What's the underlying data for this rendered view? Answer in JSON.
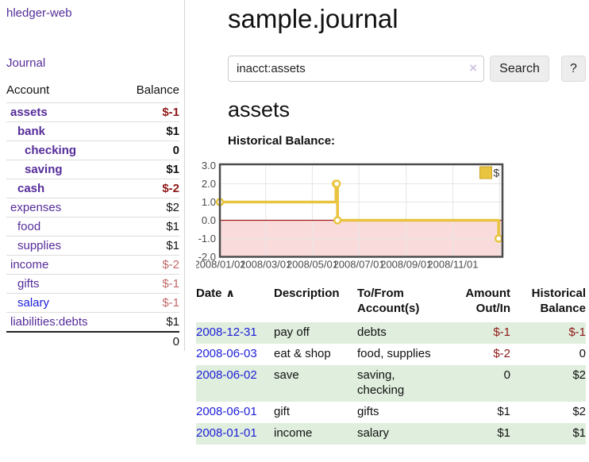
{
  "colors": {
    "link_purple": "#552c99",
    "link_blue": "#1d1dd8",
    "neg_dark": "#8f1616",
    "neg_light": "#c26868",
    "stripe_green": "#dfeedd"
  },
  "sidebar": {
    "app_title": "hledger-web",
    "journal_link": "Journal",
    "table": {
      "account_header": "Account",
      "balance_header": "Balance",
      "rows": [
        {
          "name": "assets",
          "depth": 1,
          "bold": true,
          "balance": "$-1",
          "balance_style": "neg-bold"
        },
        {
          "name": "bank",
          "depth": 2,
          "bold": true,
          "balance": "$1",
          "balance_style": "pos-bold"
        },
        {
          "name": "checking",
          "depth": 3,
          "bold": true,
          "balance": "0",
          "balance_style": "pos-bold"
        },
        {
          "name": "saving",
          "depth": 3,
          "bold": true,
          "balance": "$1",
          "balance_style": "pos-bold"
        },
        {
          "name": "cash",
          "depth": 2,
          "bold": true,
          "balance": "$-2",
          "balance_style": "neg-bold"
        },
        {
          "name": "expenses",
          "depth": 1,
          "bold": false,
          "balance": "$2",
          "balance_style": "pos"
        },
        {
          "name": "food",
          "depth": 2,
          "bold": false,
          "balance": "$1",
          "balance_style": "pos"
        },
        {
          "name": "supplies",
          "depth": 2,
          "bold": false,
          "balance": "$1",
          "balance_style": "pos"
        },
        {
          "name": "income",
          "depth": 1,
          "bold": false,
          "balance": "$-2",
          "balance_style": "neg-light"
        },
        {
          "name": "gifts",
          "depth": 2,
          "bold": false,
          "balance": "$-1",
          "balance_style": "neg-light"
        },
        {
          "name": "salary",
          "depth": 2,
          "bold": false,
          "link_color": "blue",
          "balance": "$-1",
          "balance_style": "neg-light"
        },
        {
          "name": "liabilities:debts",
          "depth": 1,
          "bold": false,
          "balance": "$1",
          "balance_style": "pos"
        }
      ],
      "total": "0"
    }
  },
  "main": {
    "title": "sample.journal",
    "account_heading": "assets"
  },
  "search": {
    "value": "inacct:assets",
    "clear_icon": "×",
    "button": "Search",
    "help_button": "?"
  },
  "chart_data": {
    "type": "line",
    "step": true,
    "title": "Historical Balance:",
    "series": [
      {
        "name": "$",
        "color": "#E9C440",
        "points": [
          [
            "2008-01-01",
            1
          ],
          [
            "2008-06-01",
            2
          ],
          [
            "2008-06-02",
            2
          ],
          [
            "2008-06-03",
            0
          ],
          [
            "2008-12-31",
            -1
          ]
        ]
      }
    ],
    "x_ticks": [
      {
        "label": "2008/01/01",
        "date": "2008-01-01"
      },
      {
        "label": "2008/03/01",
        "date": "2008-03-01"
      },
      {
        "label": "2008/05/01",
        "date": "2008-05-01"
      },
      {
        "label": "2008/07/01",
        "date": "2008-07-01"
      },
      {
        "label": "2008/09/01",
        "date": "2008-09-01"
      },
      {
        "label": "2008/11/01",
        "date": "2008-11-01"
      }
    ],
    "x_gridlines_extra": [
      "2009-01-01"
    ],
    "y_ticks": [
      {
        "label": "3.0",
        "value": 3
      },
      {
        "label": "2.0",
        "value": 2
      },
      {
        "label": "1.0",
        "value": 1
      },
      {
        "label": "0.0",
        "value": 0
      },
      {
        "label": "-1.0",
        "value": -1
      },
      {
        "label": "-2.0",
        "value": -2
      }
    ],
    "ylim": [
      -2,
      3
    ],
    "xlim": [
      "2008-01-01",
      "2009-01-05"
    ],
    "grid": true,
    "grid_color": "#e6e6e6",
    "border_color": "#4c4c4c",
    "negative_region_color": "#fadbdb",
    "zero_line_color": "#9c1c1c",
    "tick_color": "#4a4a4a",
    "legend_position": "top-right",
    "legend_box_border": "#cda32c"
  },
  "register": {
    "headers": {
      "date": "Date",
      "sort_icon": "∧",
      "description": "Description",
      "account": "To/From Account(s)",
      "amount": "Amount Out/In",
      "balance": "Historical Balance"
    },
    "rows": [
      {
        "date": "2008-12-31",
        "description": "pay off",
        "account": "debts",
        "amount": "$-1",
        "amount_neg": true,
        "balance": "$-1",
        "balance_neg": true
      },
      {
        "date": "2008-06-03",
        "description": "eat & shop",
        "account": "food, supplies",
        "amount": "$-2",
        "amount_neg": true,
        "balance": "0",
        "balance_neg": false
      },
      {
        "date": "2008-06-02",
        "description": "save",
        "account": "saving, checking",
        "amount": "0",
        "amount_neg": false,
        "balance": "$2",
        "balance_neg": false
      },
      {
        "date": "2008-06-01",
        "description": "gift",
        "account": "gifts",
        "amount": "$1",
        "amount_neg": false,
        "balance": "$2",
        "balance_neg": false
      },
      {
        "date": "2008-01-01",
        "description": "income",
        "account": "salary",
        "amount": "$1",
        "amount_neg": false,
        "balance": "$1",
        "balance_neg": false
      }
    ]
  }
}
